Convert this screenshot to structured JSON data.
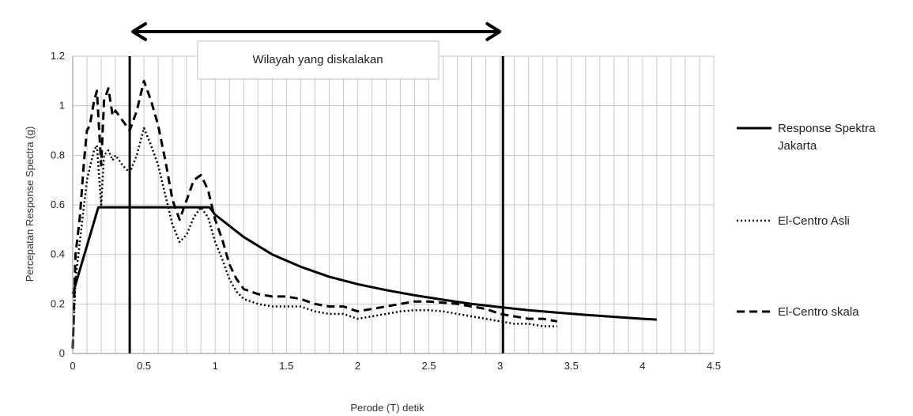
{
  "chart_data": {
    "type": "line",
    "xlabel": "Perode (T) detik",
    "ylabel": "Percepatan Response Spectra (g)",
    "xlim": [
      0,
      4.5
    ],
    "ylim": [
      0,
      1.2
    ],
    "x_ticks": [
      0,
      0.5,
      1,
      1.5,
      2,
      2.5,
      3,
      3.5,
      4,
      4.5
    ],
    "x_tick_labels": [
      "0",
      "0.5",
      "1",
      "1.5",
      "2",
      "2.5",
      "3",
      "3.5",
      "4",
      "4.5"
    ],
    "y_ticks": [
      0,
      0.2,
      0.4,
      0.6,
      0.8,
      1,
      1.2
    ],
    "y_tick_labels": [
      "0",
      "0.2",
      "0.4",
      "0.6",
      "0.8",
      "1",
      "1.2"
    ],
    "grid": true,
    "legend_position": "right",
    "series": [
      {
        "name": "Response Spektra Jakarta",
        "style": "solid",
        "color": "#000000",
        "x": [
          0,
          0.18,
          0.2,
          0.4,
          0.6,
          0.8,
          0.96,
          1.0,
          1.2,
          1.4,
          1.6,
          1.8,
          2.0,
          2.2,
          2.4,
          2.6,
          2.8,
          3.0,
          3.2,
          3.4,
          3.6,
          3.8,
          4.0,
          4.1
        ],
        "y": [
          0.24,
          0.59,
          0.59,
          0.59,
          0.59,
          0.59,
          0.59,
          0.56,
          0.47,
          0.4,
          0.35,
          0.31,
          0.28,
          0.256,
          0.235,
          0.217,
          0.2,
          0.187,
          0.175,
          0.165,
          0.156,
          0.148,
          0.14,
          0.137
        ]
      },
      {
        "name": "El-Centro Asli",
        "style": "dotted",
        "color": "#000000",
        "x": [
          0,
          0.02,
          0.05,
          0.08,
          0.1,
          0.12,
          0.15,
          0.17,
          0.2,
          0.22,
          0.25,
          0.28,
          0.3,
          0.35,
          0.4,
          0.45,
          0.5,
          0.55,
          0.6,
          0.65,
          0.7,
          0.75,
          0.8,
          0.85,
          0.9,
          0.95,
          1.0,
          1.05,
          1.1,
          1.15,
          1.2,
          1.3,
          1.4,
          1.5,
          1.6,
          1.7,
          1.8,
          1.9,
          2.0,
          2.1,
          2.2,
          2.3,
          2.4,
          2.5,
          2.6,
          2.7,
          2.8,
          2.9,
          3.0,
          3.1,
          3.2,
          3.3,
          3.4
        ],
        "y": [
          0.02,
          0.3,
          0.45,
          0.6,
          0.7,
          0.75,
          0.82,
          0.84,
          0.6,
          0.8,
          0.82,
          0.78,
          0.8,
          0.76,
          0.73,
          0.8,
          0.91,
          0.84,
          0.76,
          0.64,
          0.52,
          0.45,
          0.48,
          0.55,
          0.59,
          0.55,
          0.45,
          0.38,
          0.3,
          0.25,
          0.22,
          0.2,
          0.19,
          0.19,
          0.19,
          0.17,
          0.16,
          0.16,
          0.14,
          0.15,
          0.16,
          0.17,
          0.175,
          0.175,
          0.17,
          0.16,
          0.15,
          0.14,
          0.13,
          0.12,
          0.12,
          0.11,
          0.11
        ]
      },
      {
        "name": "El-Centro skala",
        "style": "dashed",
        "color": "#000000",
        "x": [
          0,
          0.02,
          0.05,
          0.08,
          0.1,
          0.12,
          0.15,
          0.17,
          0.2,
          0.22,
          0.25,
          0.28,
          0.3,
          0.35,
          0.4,
          0.45,
          0.5,
          0.55,
          0.6,
          0.65,
          0.7,
          0.75,
          0.8,
          0.85,
          0.9,
          0.95,
          1.0,
          1.05,
          1.1,
          1.15,
          1.2,
          1.3,
          1.4,
          1.5,
          1.6,
          1.7,
          1.8,
          1.9,
          2.0,
          2.1,
          2.2,
          2.3,
          2.4,
          2.5,
          2.6,
          2.7,
          2.8,
          2.9,
          3.0,
          3.1,
          3.2,
          3.3,
          3.4
        ],
        "y": [
          0.02,
          0.4,
          0.55,
          0.78,
          0.9,
          0.92,
          1.02,
          1.06,
          0.76,
          1.02,
          1.07,
          0.96,
          0.98,
          0.94,
          0.9,
          0.98,
          1.1,
          1.02,
          0.92,
          0.78,
          0.62,
          0.54,
          0.62,
          0.7,
          0.72,
          0.66,
          0.54,
          0.46,
          0.36,
          0.3,
          0.26,
          0.24,
          0.23,
          0.23,
          0.22,
          0.2,
          0.19,
          0.19,
          0.17,
          0.18,
          0.19,
          0.2,
          0.21,
          0.21,
          0.205,
          0.2,
          0.19,
          0.18,
          0.16,
          0.15,
          0.14,
          0.14,
          0.13
        ]
      }
    ],
    "vertical_lines": [
      0.4,
      3.02
    ],
    "annotation": {
      "text": "Wilayah yang diskalakan",
      "arrow_from": 0.4,
      "arrow_to": 3.02
    }
  }
}
